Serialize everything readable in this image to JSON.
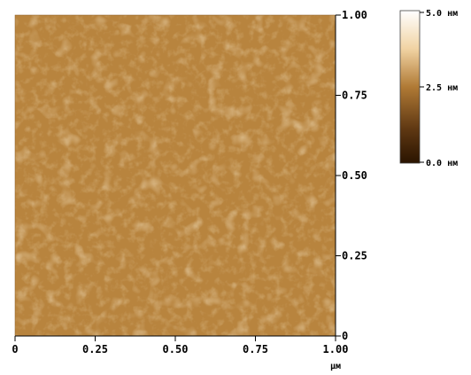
{
  "image": {
    "x_axis": {
      "ticks": [
        "0",
        "0.25",
        "0.50",
        "0.75",
        "1.00"
      ],
      "unit": "µм"
    },
    "y_axis": {
      "ticks": [
        "0",
        "0.25",
        "0.50",
        "0.75",
        "1.00"
      ]
    },
    "colorbar": {
      "labels": [
        "5.0 нм",
        "2.5 нм",
        "0.0 нм"
      ]
    },
    "colors": {
      "low": "#2a1400",
      "mid": "#b07a35",
      "high": "#ffffff"
    }
  }
}
